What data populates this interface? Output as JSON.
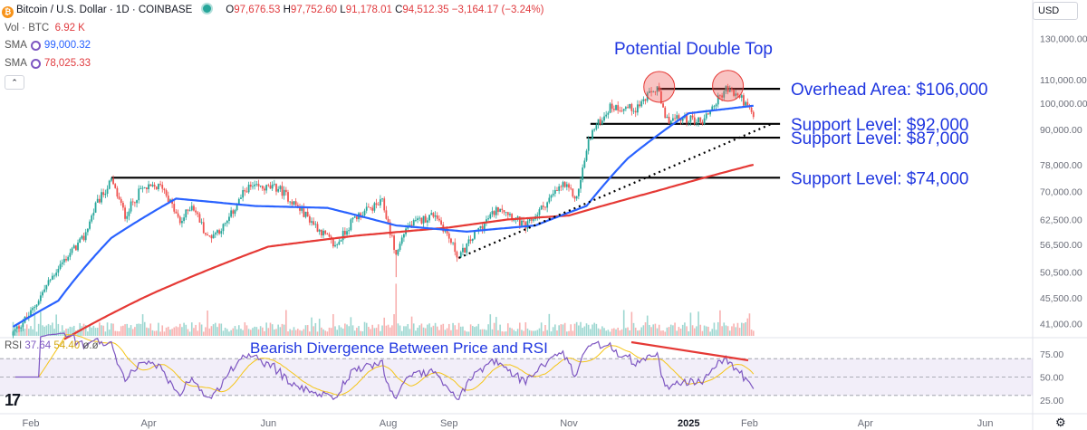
{
  "header": {
    "symbol_icon": "bitcoin-icon",
    "symbol_letter": "₿",
    "title": "Bitcoin / U.S. Dollar · 1D · COINBASE",
    "ohlc": {
      "o_label": "O",
      "o": "97,676.53",
      "h_label": "H",
      "h": "97,752.60",
      "l_label": "L",
      "l": "91,178.01",
      "c_label": "C",
      "c": "94,512.35",
      "chg": "−3,164.17 (−3.24%)"
    },
    "vol_label": "Vol · BTC",
    "vol_value": "6.92 K",
    "sma1_label": "SMA",
    "sma1_value": "99,000.32",
    "sma2_label": "SMA",
    "sma2_value": "78,025.33",
    "rsi_label": "RSI",
    "rsi_value": "37.64",
    "rsi_ma_value": "54.40",
    "rsi_extra": "ø.ø",
    "currency": "USD",
    "collapse_icon": "chevron-up-icon",
    "settings_icon": "gear-icon",
    "brand_icon": "tradingview-logo-icon",
    "brand_text": "17"
  },
  "colors": {
    "up": "#26a69a",
    "down": "#ef5350",
    "sma_fast": "#2962ff",
    "sma_slow": "#e53935",
    "rsi": "#7e57c2",
    "rsi_ma": "#f5c518",
    "annotation": "#1f36e0",
    "level": "#000000",
    "divergence": "#e53935"
  },
  "chart_data": {
    "type": "candlestick",
    "price_axis_ticks": [
      "130,000.00",
      "110,000.00",
      "100,000.00",
      "90,000.00",
      "78,000.00",
      "70,000.00",
      "62,500.00",
      "56,500.00",
      "50,500.00",
      "45,500.00",
      "41,000.00"
    ],
    "price_axis_scale": "log",
    "time_axis_ticks": [
      "Feb",
      "Apr",
      "Jun",
      "Aug",
      "Sep",
      "Nov",
      "2025",
      "Feb",
      "Apr",
      "Jun"
    ],
    "close_anchors": [
      [
        "2024-01-23",
        39500
      ],
      [
        "2024-02-01",
        42800
      ],
      [
        "2024-02-15",
        51500
      ],
      [
        "2024-02-28",
        58000
      ],
      [
        "2024-03-05",
        66000
      ],
      [
        "2024-03-13",
        73000
      ],
      [
        "2024-03-20",
        63500
      ],
      [
        "2024-03-28",
        70500
      ],
      [
        "2024-04-08",
        71500
      ],
      [
        "2024-04-17",
        61500
      ],
      [
        "2024-04-23",
        66500
      ],
      [
        "2024-05-01",
        58000
      ],
      [
        "2024-05-10",
        61000
      ],
      [
        "2024-05-21",
        71000
      ],
      [
        "2024-06-06",
        71000
      ],
      [
        "2024-06-25",
        61000
      ],
      [
        "2024-07-05",
        56000
      ],
      [
        "2024-07-15",
        63000
      ],
      [
        "2024-07-29",
        67000
      ],
      [
        "2024-08-05",
        54000
      ],
      [
        "2024-08-10",
        60500
      ],
      [
        "2024-08-25",
        64000
      ],
      [
        "2024-09-06",
        53500
      ],
      [
        "2024-09-15",
        59500
      ],
      [
        "2024-09-27",
        66000
      ],
      [
        "2024-10-10",
        60500
      ],
      [
        "2024-10-29",
        72000
      ],
      [
        "2024-11-05",
        68000
      ],
      [
        "2024-11-12",
        88000
      ],
      [
        "2024-11-22",
        98500
      ],
      [
        "2024-12-05",
        98000
      ],
      [
        "2024-12-16",
        106500
      ],
      [
        "2024-12-20",
        93500
      ],
      [
        "2025-01-01",
        94000
      ],
      [
        "2025-01-08",
        93000
      ],
      [
        "2025-01-20",
        106000
      ],
      [
        "2025-01-28",
        102000
      ],
      [
        "2025-02-03",
        94500
      ]
    ],
    "sma_fast": {
      "name": "SMA",
      "last": 99000.32,
      "anchors": [
        [
          "2024-01-23",
          40500
        ],
        [
          "2024-02-15",
          45000
        ],
        [
          "2024-03-13",
          58000
        ],
        [
          "2024-04-15",
          68000
        ],
        [
          "2024-05-25",
          66000
        ],
        [
          "2024-07-01",
          65500
        ],
        [
          "2024-08-05",
          61000
        ],
        [
          "2024-09-10",
          59500
        ],
        [
          "2024-10-15",
          61000
        ],
        [
          "2024-11-10",
          66000
        ],
        [
          "2024-12-01",
          80000
        ],
        [
          "2025-01-01",
          96000
        ],
        [
          "2025-02-03",
          99000
        ]
      ]
    },
    "sma_slow": {
      "name": "SMA",
      "last": 78025.33,
      "anchors": [
        [
          "2024-02-18",
          38500
        ],
        [
          "2024-04-01",
          46000
        ],
        [
          "2024-06-01",
          56000
        ],
        [
          "2024-07-15",
          58500
        ],
        [
          "2024-09-01",
          60500
        ],
        [
          "2024-10-01",
          62500
        ],
        [
          "2024-11-01",
          63500
        ],
        [
          "2024-12-15",
          70000
        ],
        [
          "2025-02-03",
          78000
        ]
      ]
    },
    "rsi": {
      "overbought": 70,
      "oversold": 30,
      "mid": 50,
      "axis_ticks": [
        "75.00",
        "50.00",
        "25.00"
      ],
      "last": 37.64,
      "ma_last": 54.4
    },
    "levels": [
      {
        "label": "Overhead Area: $106,000",
        "value": 106000
      },
      {
        "label": "Support Level: $92,000",
        "value": 92000
      },
      {
        "label": "Support Level: $87,000",
        "value": 87000
      },
      {
        "label": "Support Level: $74,000",
        "value": 74000
      }
    ],
    "annotations": {
      "double_top": "Potential Double Top",
      "divergence": "Bearish Divergence Between Price and RSI"
    },
    "trendline": [
      [
        "2024-09-06",
        53500
      ],
      [
        "2025-02-03",
        92000
      ]
    ],
    "double_top_peaks": [
      [
        "2024-12-17",
        108000
      ],
      [
        "2025-01-21",
        108500
      ]
    ]
  }
}
